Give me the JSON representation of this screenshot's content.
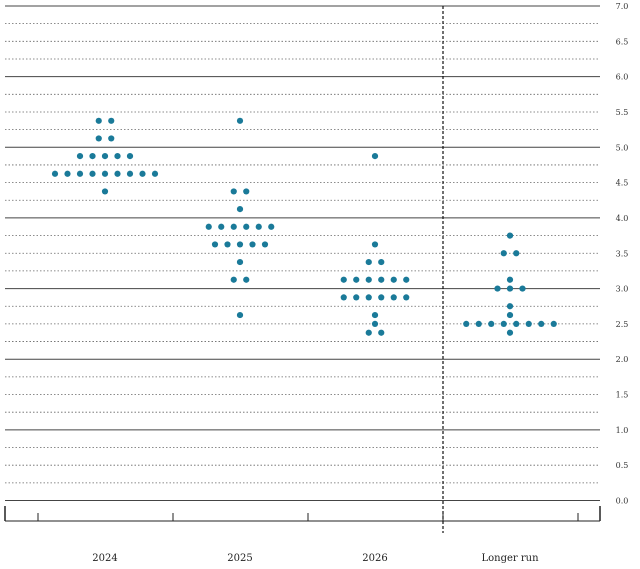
{
  "chart_data": {
    "type": "scatter",
    "categories": [
      "2024",
      "2025",
      "2026",
      "Longer run"
    ],
    "y_ticks": [
      "0.0",
      "0.5",
      "1.0",
      "1.5",
      "2.0",
      "2.5",
      "3.0",
      "3.5",
      "4.0",
      "4.5",
      "5.0",
      "5.5",
      "6.0",
      "6.5",
      "7.0"
    ],
    "ylim": [
      0,
      7
    ],
    "y_axis_side": "right",
    "dot_color": "#1a7a99",
    "grid": true,
    "separator_before": "Longer run",
    "points": [
      {
        "category": "2024",
        "value": 5.375,
        "count": 2
      },
      {
        "category": "2024",
        "value": 5.125,
        "count": 2
      },
      {
        "category": "2024",
        "value": 4.875,
        "count": 5
      },
      {
        "category": "2024",
        "value": 4.625,
        "count": 9
      },
      {
        "category": "2024",
        "value": 4.375,
        "count": 1
      },
      {
        "category": "2025",
        "value": 5.375,
        "count": 1
      },
      {
        "category": "2025",
        "value": 4.375,
        "count": 2
      },
      {
        "category": "2025",
        "value": 4.125,
        "count": 1
      },
      {
        "category": "2025",
        "value": 3.875,
        "count": 6
      },
      {
        "category": "2025",
        "value": 3.625,
        "count": 5
      },
      {
        "category": "2025",
        "value": 3.375,
        "count": 1
      },
      {
        "category": "2025",
        "value": 3.125,
        "count": 2
      },
      {
        "category": "2025",
        "value": 2.625,
        "count": 1
      },
      {
        "category": "2026",
        "value": 4.875,
        "count": 1
      },
      {
        "category": "2026",
        "value": 3.625,
        "count": 1
      },
      {
        "category": "2026",
        "value": 3.375,
        "count": 2
      },
      {
        "category": "2026",
        "value": 3.125,
        "count": 6
      },
      {
        "category": "2026",
        "value": 2.875,
        "count": 6
      },
      {
        "category": "2026",
        "value": 2.625,
        "count": 1
      },
      {
        "category": "2026",
        "value": 2.5,
        "count": 1
      },
      {
        "category": "2026",
        "value": 2.375,
        "count": 2
      },
      {
        "category": "Longer run",
        "value": 3.75,
        "count": 1
      },
      {
        "category": "Longer run",
        "value": 3.5,
        "count": 2
      },
      {
        "category": "Longer run",
        "value": 3.125,
        "count": 1
      },
      {
        "category": "Longer run",
        "value": 3.0,
        "count": 3
      },
      {
        "category": "Longer run",
        "value": 2.75,
        "count": 1
      },
      {
        "category": "Longer run",
        "value": 2.625,
        "count": 1
      },
      {
        "category": "Longer run",
        "value": 2.5,
        "count": 8
      },
      {
        "category": "Longer run",
        "value": 2.375,
        "count": 1
      }
    ]
  }
}
